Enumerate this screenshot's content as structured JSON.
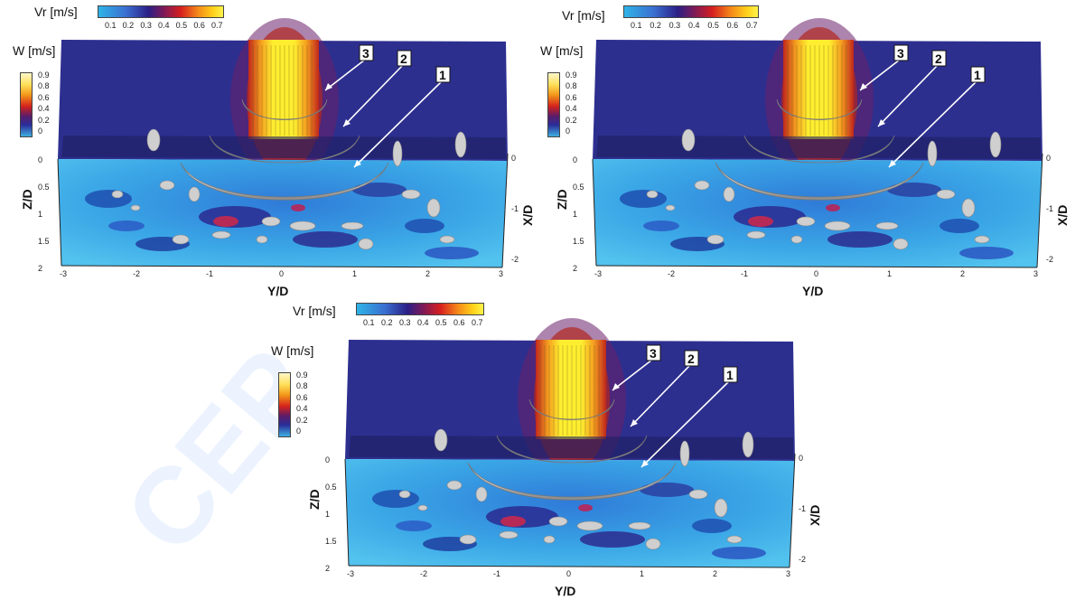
{
  "panels": [
    {
      "vr_label": "Vr [m/s]",
      "vr_ticks": [
        "0.1",
        "0.2",
        "0.3",
        "0.4",
        "0.5",
        "0.6",
        "0.7"
      ],
      "w_label": "W [m/s]",
      "w_ticks": [
        "0.9",
        "0.8",
        "0.6",
        "0.4",
        "0.2",
        "0"
      ],
      "y_ticks": [
        "-3",
        "-2",
        "-1",
        "0",
        "1",
        "2",
        "3"
      ],
      "z_ticks": [
        "0",
        "0.5",
        "1",
        "1.5",
        "2"
      ],
      "x_ticks": [
        "0",
        "-1",
        "-2"
      ],
      "ylabel": "Y/D",
      "zlabel": "Z/D",
      "xlabel": "X/D",
      "markers": [
        "3",
        "2",
        "1"
      ]
    },
    {
      "vr_label": "Vr [m/s]",
      "vr_ticks": [
        "0.1",
        "0.2",
        "0.3",
        "0.4",
        "0.5",
        "0.6",
        "0.7"
      ],
      "w_label": "W [m/s]",
      "w_ticks": [
        "0.9",
        "0.8",
        "0.6",
        "0.4",
        "0.2",
        "0"
      ],
      "y_ticks": [
        "-3",
        "-2",
        "-1",
        "0",
        "1",
        "2",
        "3"
      ],
      "z_ticks": [
        "0",
        "0.5",
        "1",
        "1.5",
        "2"
      ],
      "x_ticks": [
        "0",
        "-1",
        "-2"
      ],
      "ylabel": "Y/D",
      "zlabel": "Z/D",
      "xlabel": "X/D",
      "markers": [
        "3",
        "2",
        "1"
      ]
    },
    {
      "vr_label": "Vr [m/s]",
      "vr_ticks": [
        "0.1",
        "0.2",
        "0.3",
        "0.4",
        "0.5",
        "0.6",
        "0.7"
      ],
      "w_label": "W [m/s]",
      "w_ticks": [
        "0.9",
        "0.8",
        "0.6",
        "0.4",
        "0.2",
        "0"
      ],
      "y_ticks": [
        "-3",
        "-2",
        "-1",
        "0",
        "1",
        "2",
        "3"
      ],
      "z_ticks": [
        "0",
        "0.5",
        "1",
        "1.5",
        "2"
      ],
      "x_ticks": [
        "0",
        "-1",
        "-2"
      ],
      "ylabel": "Y/D",
      "zlabel": "Z/D",
      "xlabel": "X/D",
      "markers": [
        "3",
        "2",
        "1"
      ]
    }
  ]
}
